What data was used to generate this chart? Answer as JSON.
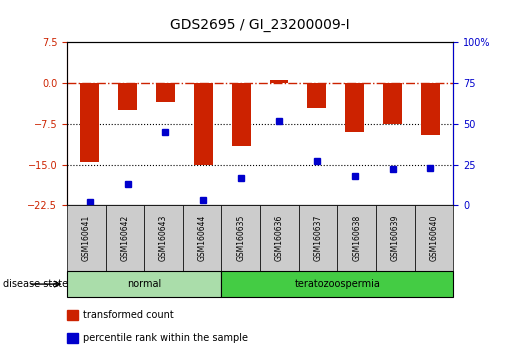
{
  "title": "GDS2695 / GI_23200009-I",
  "samples": [
    "GSM160641",
    "GSM160642",
    "GSM160643",
    "GSM160644",
    "GSM160635",
    "GSM160636",
    "GSM160637",
    "GSM160638",
    "GSM160639",
    "GSM160640"
  ],
  "transformed_count": [
    -14.5,
    -5.0,
    -3.5,
    -15.0,
    -11.5,
    0.5,
    -4.5,
    -9.0,
    -7.5,
    -9.5
  ],
  "percentile_rank": [
    2,
    13,
    45,
    3,
    17,
    52,
    27,
    18,
    22,
    23
  ],
  "groups": [
    {
      "label": "normal",
      "samples": [
        0,
        1,
        2,
        3
      ]
    },
    {
      "label": "teratozoospermia",
      "samples": [
        4,
        5,
        6,
        7,
        8,
        9
      ]
    }
  ],
  "ylim_left": [
    -22.5,
    7.5
  ],
  "yticks_left": [
    -22.5,
    -15.0,
    -7.5,
    0.0,
    7.5
  ],
  "ylim_right": [
    0,
    100
  ],
  "yticks_right": [
    0,
    25,
    50,
    75,
    100
  ],
  "bar_color": "#CC2200",
  "dot_color": "#0000CC",
  "dotted_lines": [
    -7.5,
    -15.0
  ],
  "bar_width": 0.5,
  "background_color": "#ffffff",
  "plot_bg_color": "#ffffff",
  "legend_items": [
    {
      "label": "transformed count",
      "color": "#CC2200"
    },
    {
      "label": "percentile rank within the sample",
      "color": "#0000CC"
    }
  ],
  "disease_state_label": "disease state",
  "group_normal_color": "#aaddaa",
  "group_terato_color": "#44cc44",
  "sample_box_color": "#cccccc"
}
